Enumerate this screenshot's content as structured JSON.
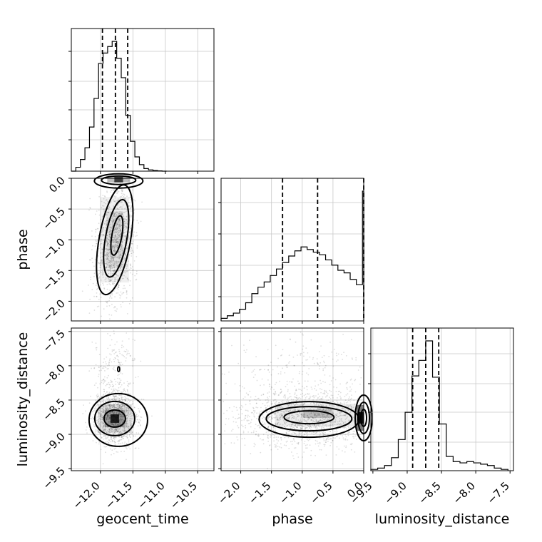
{
  "chart_data": {
    "type": "corner",
    "parameters": [
      "geocent_time",
      "phase",
      "luminosity_distance"
    ],
    "ranges": {
      "geocent_time": [
        -12.45,
        -10.25
      ],
      "phase": [
        -2.32,
        0.0
      ],
      "luminosity_distance": [
        -9.53,
        -7.45
      ]
    },
    "ticks": {
      "geocent_time": [
        "-12.0",
        "-11.5",
        "-11.0",
        "-10.5"
      ],
      "phase": [
        "-2.0",
        "-1.5",
        "-1.0",
        "-0.5",
        "0.0"
      ],
      "luminosity_distance": [
        "-9.5",
        "-9.0",
        "-8.5",
        "-8.0",
        "-7.5"
      ]
    },
    "quantiles": {
      "geocent_time": [
        -11.97,
        -11.77,
        -11.58
      ],
      "phase": [
        -1.32,
        -0.75,
        0.0
      ],
      "luminosity_distance": [
        -8.92,
        -8.73,
        -8.54
      ]
    },
    "histograms": {
      "geocent_time": {
        "edges": [
          -12.45,
          -12.38,
          -12.31,
          -12.24,
          -12.17,
          -12.1,
          -12.03,
          -11.96,
          -11.89,
          -11.82,
          -11.75,
          -11.68,
          -11.61,
          -11.54,
          -11.47,
          -11.4,
          -11.33,
          -11.26,
          -11.19,
          -11.12,
          -11.05,
          -10.98
        ],
        "counts": [
          0,
          0.03,
          0.09,
          0.18,
          0.34,
          0.56,
          0.83,
          0.91,
          0.96,
          1.0,
          0.87,
          0.72,
          0.43,
          0.23,
          0.11,
          0.05,
          0.02,
          0.01,
          0.005,
          0.002,
          0
        ]
      },
      "phase": {
        "edges": [
          -2.32,
          -2.22,
          -2.12,
          -2.02,
          -1.92,
          -1.82,
          -1.72,
          -1.62,
          -1.52,
          -1.42,
          -1.32,
          -1.22,
          -1.12,
          -1.02,
          -0.92,
          -0.82,
          -0.72,
          -0.62,
          -0.52,
          -0.42,
          -0.32,
          -0.22,
          -0.12,
          -0.02,
          0.0
        ],
        "counts": [
          0.02,
          0.04,
          0.06,
          0.09,
          0.14,
          0.21,
          0.26,
          0.3,
          0.35,
          0.4,
          0.45,
          0.5,
          0.54,
          0.57,
          0.55,
          0.53,
          0.51,
          0.47,
          0.43,
          0.39,
          0.37,
          0.32,
          0.28,
          1.0
        ]
      },
      "luminosity_distance": {
        "edges": [
          -9.53,
          -9.43,
          -9.33,
          -9.23,
          -9.13,
          -9.03,
          -8.93,
          -8.83,
          -8.73,
          -8.63,
          -8.53,
          -8.43,
          -8.33,
          -8.23,
          -8.13,
          -8.03,
          -7.93,
          -7.83,
          -7.73,
          -7.63,
          -7.53
        ],
        "counts": [
          0.01,
          0.02,
          0.04,
          0.1,
          0.24,
          0.45,
          0.73,
          0.85,
          1.0,
          0.72,
          0.36,
          0.11,
          0.07,
          0.06,
          0.07,
          0.06,
          0.05,
          0.04,
          0.02,
          0.01
        ]
      }
    },
    "panels_2d": [
      {
        "x": "geocent_time",
        "y": "phase",
        "contour_levels": 3,
        "mode_center": {
          "x": -11.72,
          "y": -0.02
        }
      },
      {
        "x": "geocent_time",
        "y": "luminosity_distance",
        "contour_levels": 3,
        "mode_center": {
          "x": -11.78,
          "y": -8.77
        }
      },
      {
        "x": "phase",
        "y": "luminosity_distance",
        "contour_levels": 3,
        "mode_center": {
          "x": -0.75,
          "y": -8.72
        }
      }
    ]
  }
}
